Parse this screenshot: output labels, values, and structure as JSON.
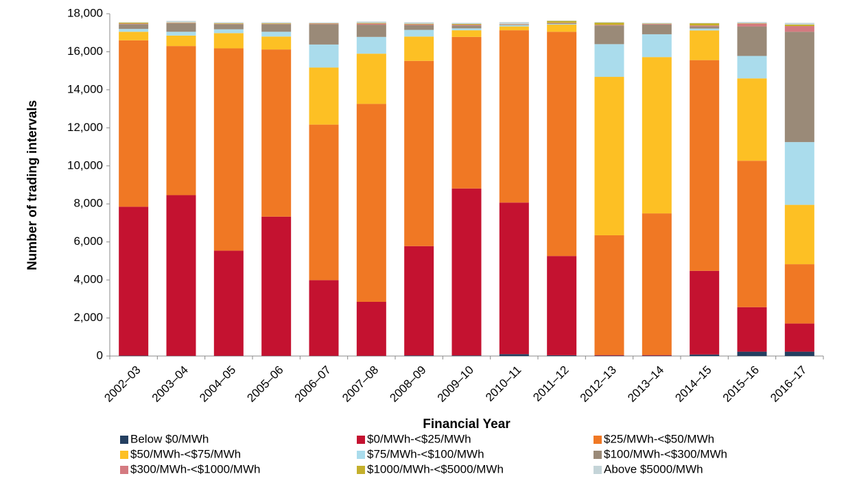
{
  "chart_data": {
    "type": "stacked-bar",
    "x_label": "Financial Year",
    "y_label": "Number of trading intervals",
    "categories": [
      "2002–03",
      "2003–04",
      "2004–05",
      "2005–06",
      "2006–07",
      "2007–08",
      "2008–09",
      "2009–10",
      "2010–11",
      "2011–12",
      "2012–13",
      "2013–14",
      "2014–15",
      "2015–16",
      "2016–17"
    ],
    "series": [
      {
        "name": "Below $0/MWh",
        "color": "#243f60",
        "values": [
          20,
          10,
          10,
          10,
          10,
          10,
          30,
          30,
          100,
          40,
          20,
          20,
          80,
          230,
          230
        ]
      },
      {
        "name": "$0/MWh-<$25/MWh",
        "color": "#c41230",
        "values": [
          7830,
          8450,
          5530,
          7320,
          3980,
          2840,
          5750,
          8780,
          7970,
          5220,
          30,
          30,
          4400,
          2340,
          1480
        ]
      },
      {
        "name": "$25/MWh-<$50/MWh",
        "color": "#f07824",
        "values": [
          8750,
          7840,
          10640,
          8790,
          8180,
          10410,
          9740,
          7970,
          9060,
          11790,
          6300,
          7450,
          11080,
          7700,
          3120
        ]
      },
      {
        "name": "$50/MWh-<$75/MWh",
        "color": "#fdc024",
        "values": [
          450,
          550,
          800,
          680,
          3000,
          2640,
          1280,
          350,
          200,
          380,
          8330,
          8220,
          1560,
          4330,
          3120
        ]
      },
      {
        "name": "$75/MWh-<$100/MWh",
        "color": "#aadcec",
        "values": [
          150,
          200,
          200,
          250,
          1210,
          880,
          350,
          100,
          70,
          30,
          1720,
          1200,
          100,
          1180,
          3300
        ]
      },
      {
        "name": "$100/MWh-<$300/MWh",
        "color": "#9a8a78",
        "values": [
          250,
          450,
          270,
          400,
          1070,
          640,
          250,
          150,
          30,
          40,
          980,
          510,
          110,
          1550,
          5800
        ]
      },
      {
        "name": "$300/MWh-<$1000/MWh",
        "color": "#d47a80",
        "values": [
          30,
          20,
          20,
          20,
          30,
          60,
          40,
          40,
          20,
          20,
          30,
          30,
          50,
          150,
          300
        ]
      },
      {
        "name": "$1000/MWh-<$5000/MWh",
        "color": "#c4b02c",
        "values": [
          50,
          20,
          30,
          30,
          20,
          30,
          30,
          40,
          10,
          100,
          120,
          20,
          120,
          20,
          80
        ]
      },
      {
        "name": "Above $5000/MWh",
        "color": "#c4d4d8",
        "values": [
          20,
          80,
          50,
          50,
          40,
          80,
          80,
          60,
          100,
          20,
          30,
          40,
          20,
          68,
          90
        ]
      }
    ],
    "ylim": [
      0,
      18000
    ],
    "yticks": [
      0,
      {
        "value": 2000,
        "label": "2,000"
      },
      {
        "value": 4000,
        "label": "4,000"
      },
      {
        "value": 6000,
        "label": "6,000"
      },
      {
        "value": 8000,
        "label": "8,000"
      },
      {
        "value": 10000,
        "label": "10,000"
      },
      {
        "value": 12000,
        "label": "12,000"
      },
      {
        "value": 14000,
        "label": "14,000"
      },
      {
        "value": 16000,
        "label": "16,000"
      },
      {
        "value": 18000,
        "label": "18,000"
      }
    ]
  }
}
